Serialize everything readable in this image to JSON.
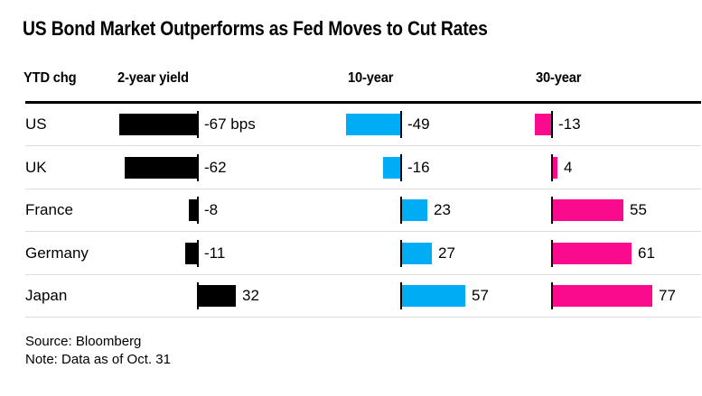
{
  "title": "US Bond Market Outperforms as Fed Moves to Cut Rates",
  "header": {
    "ytd": "YTD chg",
    "col2": "2-year yield",
    "col10": "10-year",
    "col30": "30-year"
  },
  "footer": {
    "source": "Source: Bloomberg",
    "note": "Note: Data as of Oct. 31"
  },
  "colors": {
    "two_year_bar": "#000000",
    "ten_year_bar": "#00adf4",
    "thirty_year_bar": "#fa0a8c",
    "rule": "#000000",
    "separator": "#dcdcdc",
    "background": "#ffffff",
    "text": "#000000"
  },
  "chart_data": {
    "type": "bar",
    "orientation": "horizontal",
    "unit": "bps",
    "title": "US Bond Market Outperforms as Fed Moves to Cut Rates",
    "categories": [
      "US",
      "UK",
      "France",
      "Germany",
      "Japan"
    ],
    "series": [
      {
        "name": "2-year yield",
        "key": "2-year",
        "color": "#000000",
        "values": [
          -67,
          -62,
          -8,
          -11,
          32
        ],
        "labels": [
          "-67 bps",
          "-62",
          "-8",
          "-11",
          "32"
        ]
      },
      {
        "name": "10-year",
        "key": "10-year",
        "color": "#00adf4",
        "values": [
          -49,
          -16,
          23,
          27,
          57
        ],
        "labels": [
          "-49",
          "-16",
          "23",
          "27",
          "57"
        ]
      },
      {
        "name": "30-year",
        "key": "30-year",
        "color": "#fa0a8c",
        "values": [
          -13,
          4,
          55,
          61,
          77
        ],
        "labels": [
          "-13",
          "4",
          "55",
          "61",
          "77"
        ]
      }
    ],
    "value_range_hint": [
      -67,
      77
    ],
    "grid": false,
    "legend": "column-headers"
  }
}
